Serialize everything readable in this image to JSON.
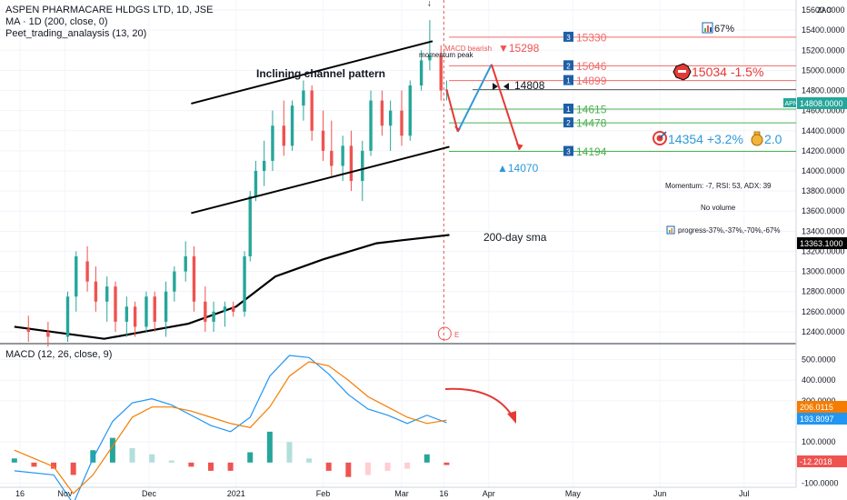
{
  "header": {
    "title": "ASPEN PHARMACARE HLDGS LTD, 1D, JSE",
    "ma_legend": "MA · 1D (200, close, 0)",
    "indicator_legend": "Peet_trading_analaysis (13, 20)",
    "macd_legend": "MACD (12, 26, close, 9)",
    "currency": "ZAC"
  },
  "colors": {
    "up": "#26a69a",
    "down": "#ef5350",
    "resistance": "#f06b6b",
    "support": "#4caf50",
    "blue": "#2e98d8",
    "badge": "#1e5fa8",
    "macd_line": "#2196f3",
    "signal_line": "#f57c00",
    "arrow": "#e53935",
    "label": "#131722"
  },
  "annotations": {
    "channel": "Inclining channel pattern",
    "sma": "200-day sma",
    "momentum_peak": "momentum peak",
    "macd_bearish": "MACD bearish",
    "momentum_stats": "Momentum: -7, RSI: 53, ADX: 39",
    "volume": "No volume",
    "progress": "progress-37%,-37%,-70%,-67%",
    "percent_badge": "67%",
    "earnings_marker": "E",
    "current_marker": "14808"
  },
  "levels": {
    "resistance": [
      {
        "badge": "3",
        "value": "15330",
        "price": 15330
      },
      {
        "badge": "2",
        "value": "15046",
        "price": 15046
      },
      {
        "badge": "1",
        "value": "14899",
        "price": 14899
      }
    ],
    "support": [
      {
        "badge": "1",
        "value": "14615",
        "price": 14615
      },
      {
        "badge": "2",
        "value": "14478",
        "price": 14478
      },
      {
        "badge": "3",
        "value": "14194",
        "price": 14194
      }
    ],
    "top_target": "▼15298",
    "stop_label": "15034 -1.5%",
    "target_label": "14354 +3.2%",
    "ratio_label": "2.0",
    "low_target": "▲14070"
  },
  "price_axis": {
    "ticks": [
      "15600.0000",
      "15400.0000",
      "15200.0000",
      "15000.0000",
      "14800.0000",
      "14600.0000",
      "14400.0000",
      "14200.0000",
      "14000.0000",
      "13800.0000",
      "13600.0000",
      "13400.0000",
      "13200.0000",
      "13000.0000",
      "12800.0000",
      "12600.0000",
      "12400.0000"
    ],
    "current_symbol": "APN",
    "current_value": "14808.0000",
    "sma_value": "13363.1000"
  },
  "macd_axis": {
    "ticks": [
      "500.0000",
      "400.0000",
      "300.0000",
      "100.0000",
      "-100.0000"
    ],
    "signal_value": "206.0115",
    "macd_value": "193.8097",
    "hist_value": "-12.2018"
  },
  "time_axis": {
    "labels": [
      "16",
      "Nov",
      "Dec",
      "2021",
      "Feb",
      "Mar",
      "16",
      "Apr",
      "May",
      "Jun",
      "Jul"
    ]
  },
  "chart_data": {
    "type": "candlestick",
    "symbol": "APN",
    "title": "ASPEN PHARMACARE HLDGS LTD, 1D, JSE",
    "x_range": [
      "2020-10-16",
      "2021-07-15"
    ],
    "y_range": [
      12300,
      15700
    ],
    "macd_range": [
      -120,
      560
    ],
    "last_close": 14808,
    "sma200_last": 13363.1,
    "levels": [
      15330,
      15298,
      15046,
      15034,
      14899,
      14808,
      14615,
      14478,
      14354,
      14194,
      14070
    ],
    "channel": {
      "upper": [
        [
          "2020-12-16",
          14670
        ],
        [
          "2021-03-12",
          15290
        ]
      ],
      "lower": [
        [
          "2020-12-16",
          13580
        ],
        [
          "2021-03-18",
          14240
        ]
      ]
    },
    "sma200": [
      [
        "2020-10-14",
        12450
      ],
      [
        "2020-11-15",
        12330
      ],
      [
        "2020-12-15",
        12480
      ],
      [
        "2021-01-01",
        12650
      ],
      [
        "2021-01-15",
        12950
      ],
      [
        "2021-02-01",
        13120
      ],
      [
        "2021-02-20",
        13280
      ],
      [
        "2021-03-01",
        13310
      ],
      [
        "2021-03-18",
        13363
      ]
    ],
    "candles": [
      {
        "d": "2020-10-19",
        "o": 12430,
        "h": 12560,
        "l": 12300,
        "c": 12400
      },
      {
        "d": "2020-10-26",
        "o": 12400,
        "h": 12500,
        "l": 12250,
        "c": 12350
      },
      {
        "d": "2020-11-02",
        "o": 12350,
        "h": 12800,
        "l": 12300,
        "c": 12750
      },
      {
        "d": "2020-11-05",
        "o": 12750,
        "h": 13200,
        "l": 12600,
        "c": 13150
      },
      {
        "d": "2020-11-09",
        "o": 13100,
        "h": 13250,
        "l": 12800,
        "c": 12900
      },
      {
        "d": "2020-11-12",
        "o": 12900,
        "h": 13050,
        "l": 12600,
        "c": 12700
      },
      {
        "d": "2020-11-16",
        "o": 12700,
        "h": 12950,
        "l": 12500,
        "c": 12850
      },
      {
        "d": "2020-11-19",
        "o": 12850,
        "h": 12900,
        "l": 12400,
        "c": 12500
      },
      {
        "d": "2020-11-23",
        "o": 12500,
        "h": 12750,
        "l": 12350,
        "c": 12650
      },
      {
        "d": "2020-11-26",
        "o": 12650,
        "h": 12700,
        "l": 12350,
        "c": 12450
      },
      {
        "d": "2020-11-30",
        "o": 12450,
        "h": 12800,
        "l": 12400,
        "c": 12750
      },
      {
        "d": "2020-12-03",
        "o": 12750,
        "h": 12800,
        "l": 12400,
        "c": 12500
      },
      {
        "d": "2020-12-07",
        "o": 12500,
        "h": 12900,
        "l": 12350,
        "c": 12800
      },
      {
        "d": "2020-12-10",
        "o": 12800,
        "h": 13050,
        "l": 12700,
        "c": 13000
      },
      {
        "d": "2020-12-14",
        "o": 13000,
        "h": 13300,
        "l": 12900,
        "c": 13150
      },
      {
        "d": "2020-12-17",
        "o": 13150,
        "h": 13250,
        "l": 12600,
        "c": 12700
      },
      {
        "d": "2020-12-21",
        "o": 12700,
        "h": 12850,
        "l": 12400,
        "c": 12500
      },
      {
        "d": "2020-12-24",
        "o": 12500,
        "h": 12700,
        "l": 12400,
        "c": 12600
      },
      {
        "d": "2020-12-28",
        "o": 12600,
        "h": 12700,
        "l": 12450,
        "c": 12650
      },
      {
        "d": "2020-12-31",
        "o": 12650,
        "h": 12700,
        "l": 12550,
        "c": 12600
      },
      {
        "d": "2021-01-04",
        "o": 12600,
        "h": 13200,
        "l": 12550,
        "c": 13150
      },
      {
        "d": "2021-01-06",
        "o": 13150,
        "h": 13800,
        "l": 13100,
        "c": 13750
      },
      {
        "d": "2021-01-08",
        "o": 13750,
        "h": 14100,
        "l": 13700,
        "c": 14000
      },
      {
        "d": "2021-01-11",
        "o": 14000,
        "h": 14300,
        "l": 13850,
        "c": 14100
      },
      {
        "d": "2021-01-14",
        "o": 14100,
        "h": 14600,
        "l": 14000,
        "c": 14450
      },
      {
        "d": "2021-01-18",
        "o": 14450,
        "h": 14700,
        "l": 14150,
        "c": 14250
      },
      {
        "d": "2021-01-21",
        "o": 14250,
        "h": 14700,
        "l": 14200,
        "c": 14650
      },
      {
        "d": "2021-01-25",
        "o": 14650,
        "h": 14900,
        "l": 14500,
        "c": 14800
      },
      {
        "d": "2021-01-28",
        "o": 14800,
        "h": 14850,
        "l": 14300,
        "c": 14400
      },
      {
        "d": "2021-02-01",
        "o": 14400,
        "h": 14600,
        "l": 14100,
        "c": 14200
      },
      {
        "d": "2021-02-04",
        "o": 14200,
        "h": 14500,
        "l": 13950,
        "c": 14050
      },
      {
        "d": "2021-02-08",
        "o": 14050,
        "h": 14350,
        "l": 13900,
        "c": 14250
      },
      {
        "d": "2021-02-11",
        "o": 14250,
        "h": 14400,
        "l": 13800,
        "c": 13900
      },
      {
        "d": "2021-02-15",
        "o": 13900,
        "h": 14300,
        "l": 13700,
        "c": 14200
      },
      {
        "d": "2021-02-18",
        "o": 14200,
        "h": 14800,
        "l": 14150,
        "c": 14700
      },
      {
        "d": "2021-02-22",
        "o": 14700,
        "h": 14800,
        "l": 14350,
        "c": 14450
      },
      {
        "d": "2021-02-25",
        "o": 14450,
        "h": 14700,
        "l": 14200,
        "c": 14600
      },
      {
        "d": "2021-03-01",
        "o": 14600,
        "h": 14800,
        "l": 14250,
        "c": 14350
      },
      {
        "d": "2021-03-04",
        "o": 14350,
        "h": 14900,
        "l": 14300,
        "c": 14850
      },
      {
        "d": "2021-03-08",
        "o": 14850,
        "h": 15200,
        "l": 14800,
        "c": 15100
      },
      {
        "d": "2021-03-11",
        "o": 15100,
        "h": 15500,
        "l": 15000,
        "c": 15150
      },
      {
        "d": "2021-03-15",
        "o": 15150,
        "h": 15250,
        "l": 14700,
        "c": 14800
      },
      {
        "d": "2021-03-17",
        "o": 14800,
        "h": 14900,
        "l": 14700,
        "c": 14808
      }
    ],
    "macd": [
      [
        "2020-10-14",
        -40
      ],
      [
        "2020-10-28",
        -60
      ],
      [
        "2020-11-04",
        -200
      ],
      [
        "2020-11-11",
        20
      ],
      [
        "2020-11-18",
        200
      ],
      [
        "2020-11-25",
        290
      ],
      [
        "2020-12-02",
        310
      ],
      [
        "2020-12-09",
        280
      ],
      [
        "2020-12-16",
        230
      ],
      [
        "2020-12-23",
        180
      ],
      [
        "2020-12-30",
        150
      ],
      [
        "2021-01-06",
        220
      ],
      [
        "2021-01-13",
        420
      ],
      [
        "2021-01-20",
        520
      ],
      [
        "2021-01-27",
        510
      ],
      [
        "2021-02-03",
        430
      ],
      [
        "2021-02-10",
        330
      ],
      [
        "2021-02-17",
        260
      ],
      [
        "2021-02-24",
        230
      ],
      [
        "2021-03-03",
        190
      ],
      [
        "2021-03-10",
        230
      ],
      [
        "2021-03-17",
        194
      ]
    ],
    "signal": [
      [
        "2020-10-14",
        60
      ],
      [
        "2020-10-28",
        -20
      ],
      [
        "2020-11-04",
        -150
      ],
      [
        "2020-11-11",
        -60
      ],
      [
        "2020-11-18",
        80
      ],
      [
        "2020-11-25",
        220
      ],
      [
        "2020-12-02",
        270
      ],
      [
        "2020-12-09",
        270
      ],
      [
        "2020-12-16",
        250
      ],
      [
        "2020-12-23",
        220
      ],
      [
        "2020-12-30",
        190
      ],
      [
        "2021-01-06",
        170
      ],
      [
        "2021-01-13",
        270
      ],
      [
        "2021-01-20",
        420
      ],
      [
        "2021-01-27",
        490
      ],
      [
        "2021-02-03",
        470
      ],
      [
        "2021-02-10",
        400
      ],
      [
        "2021-02-17",
        320
      ],
      [
        "2021-02-24",
        270
      ],
      [
        "2021-03-03",
        220
      ],
      [
        "2021-03-10",
        190
      ],
      [
        "2021-03-17",
        206
      ]
    ],
    "histogram": [
      [
        "2020-10-14",
        20
      ],
      [
        "2020-10-21",
        -20
      ],
      [
        "2020-10-28",
        -30
      ],
      [
        "2020-11-04",
        -60
      ],
      [
        "2020-11-11",
        60
      ],
      [
        "2020-11-18",
        120
      ],
      [
        "2020-11-25",
        70
      ],
      [
        "2020-12-02",
        40
      ],
      [
        "2020-12-09",
        10
      ],
      [
        "2020-12-16",
        -20
      ],
      [
        "2020-12-23",
        -40
      ],
      [
        "2020-12-30",
        -40
      ],
      [
        "2021-01-06",
        50
      ],
      [
        "2021-01-13",
        150
      ],
      [
        "2021-01-20",
        100
      ],
      [
        "2021-01-27",
        20
      ],
      [
        "2021-02-03",
        -40
      ],
      [
        "2021-02-10",
        -70
      ],
      [
        "2021-02-17",
        -60
      ],
      [
        "2021-02-24",
        -40
      ],
      [
        "2021-03-03",
        -30
      ],
      [
        "2021-03-10",
        40
      ],
      [
        "2021-03-17",
        -12
      ]
    ]
  }
}
